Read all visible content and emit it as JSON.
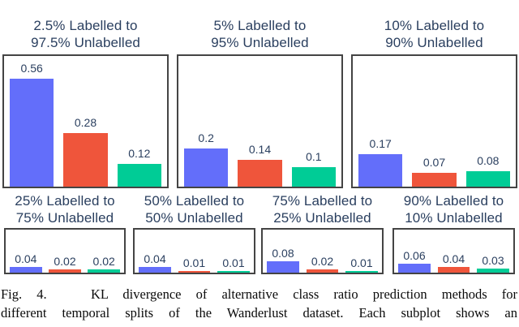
{
  "figure": {
    "caption": {
      "line1": "Fig. 4.   KL divergence of alternative class ratio prediction methods for",
      "line2": "different temporal splits of the Wanderlust dataset. Each subplot shows an"
    }
  },
  "colors": {
    "series": [
      "#636EFA",
      "#EF553B",
      "#00CC96"
    ],
    "label_text": "#2a3f5f",
    "box_border": "#444444",
    "background": "#ffffff"
  },
  "chart_data": [
    {
      "type": "bar",
      "title": [
        "2.5% Labelled to",
        "97.5% Unlabelled"
      ],
      "values": [
        0.56,
        0.28,
        0.12
      ],
      "labels": [
        "0.56",
        "0.28",
        "0.12"
      ],
      "ylim": [
        0,
        0.68
      ],
      "grid": false,
      "legend": false
    },
    {
      "type": "bar",
      "title": [
        "5% Labelled to",
        "95% Unlabelled"
      ],
      "values": [
        0.2,
        0.14,
        0.1
      ],
      "labels": [
        "0.2",
        "0.14",
        "0.1"
      ],
      "ylim": [
        0,
        0.68
      ],
      "grid": false,
      "legend": false
    },
    {
      "type": "bar",
      "title": [
        "10% Labelled to",
        "90% Unlabelled"
      ],
      "values": [
        0.17,
        0.07,
        0.08
      ],
      "labels": [
        "0.17",
        "0.07",
        "0.08"
      ],
      "ylim": [
        0,
        0.68
      ],
      "grid": false,
      "legend": false
    },
    {
      "type": "bar",
      "title": [
        "25% Labelled to",
        "75% Unlabelled"
      ],
      "values": [
        0.04,
        0.02,
        0.02
      ],
      "labels": [
        "0.04",
        "0.02",
        "0.02"
      ],
      "ylim": [
        0,
        0.3
      ],
      "grid": false,
      "legend": false
    },
    {
      "type": "bar",
      "title": [
        "50% Labelled to",
        "50% Unlabelled"
      ],
      "values": [
        0.04,
        0.01,
        0.01
      ],
      "labels": [
        "0.04",
        "0.01",
        "0.01"
      ],
      "ylim": [
        0,
        0.3
      ],
      "grid": false,
      "legend": false
    },
    {
      "type": "bar",
      "title": [
        "75% Labelled to",
        "25% Unlabelled"
      ],
      "values": [
        0.08,
        0.02,
        0.01
      ],
      "labels": [
        "0.08",
        "0.02",
        "0.01"
      ],
      "ylim": [
        0,
        0.3
      ],
      "grid": false,
      "legend": false
    },
    {
      "type": "bar",
      "title": [
        "90% Labelled to",
        "10% Unlabelled"
      ],
      "values": [
        0.06,
        0.04,
        0.03
      ],
      "labels": [
        "0.06",
        "0.04",
        "0.03"
      ],
      "ylim": [
        0,
        0.3
      ],
      "grid": false,
      "legend": false
    }
  ]
}
